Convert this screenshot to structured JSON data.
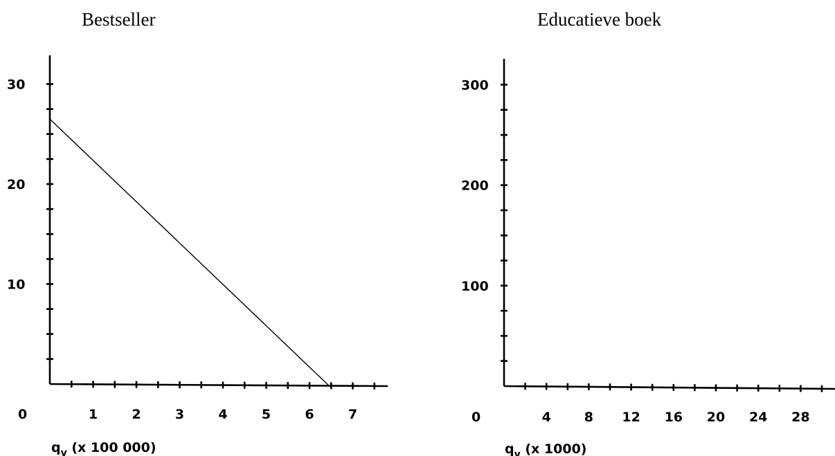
{
  "chart_data": [
    {
      "type": "line",
      "title": "Bestseller",
      "xlabel": "q_v (x 100 000)",
      "xlabel_main": "q",
      "xlabel_sub": "v",
      "xlabel_rest": " (x 100 000)",
      "origin_label": "0",
      "xlim": [
        0,
        7.8
      ],
      "ylim": [
        0,
        30
      ],
      "xticks": [
        1,
        2,
        3,
        4,
        5,
        6,
        7
      ],
      "yticks": [
        10,
        20,
        30
      ],
      "minor_x_step": 0.5,
      "minor_y_step": 2.5,
      "grid": false,
      "series": [
        {
          "x": [
            0,
            6.45
          ],
          "y": [
            26.5,
            0
          ]
        }
      ]
    },
    {
      "type": "line",
      "title": "Educatieve boek",
      "xlabel": "q_v (x 1000)",
      "xlabel_main": "q",
      "xlabel_sub": "v",
      "xlabel_rest": " (x 1000)",
      "origin_label": "0",
      "xlim": [
        0,
        30
      ],
      "ylim": [
        0,
        300
      ],
      "xticks": [
        4,
        8,
        12,
        16,
        20,
        24,
        28
      ],
      "yticks": [
        100,
        200,
        300
      ],
      "minor_x_step": 2,
      "minor_y_step": 25,
      "grid": false,
      "series": []
    }
  ]
}
